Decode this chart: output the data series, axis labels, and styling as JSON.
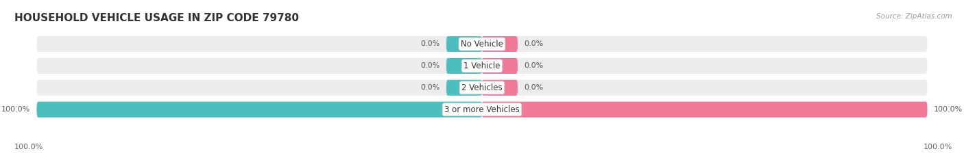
{
  "title": "HOUSEHOLD VEHICLE USAGE IN ZIP CODE 79780",
  "source": "Source: ZipAtlas.com",
  "categories": [
    "No Vehicle",
    "1 Vehicle",
    "2 Vehicles",
    "3 or more Vehicles"
  ],
  "owner_values": [
    0.0,
    0.0,
    0.0,
    100.0
  ],
  "renter_values": [
    0.0,
    0.0,
    0.0,
    100.0
  ],
  "teal": "#4BBFC0",
  "pink": "#F07898",
  "bar_bg_color": "#ECECEC",
  "background": "#FFFFFF",
  "title_fontsize": 11,
  "figsize": [
    14.06,
    2.34
  ],
  "dpi": 100,
  "min_bar_val": 8.0,
  "axis_bottom_left": "100.0%",
  "axis_bottom_right": "100.0%"
}
